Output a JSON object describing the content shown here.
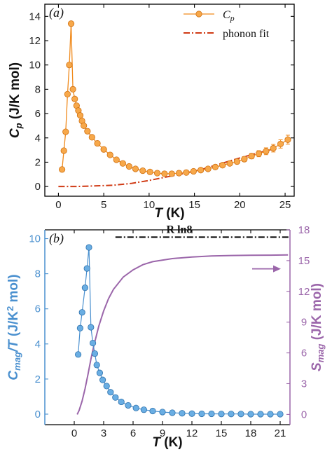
{
  "chart_data": [
    {
      "panel": "(a)",
      "type": "line",
      "xlabel": "T (K)",
      "ylabel": "Cp (J/K mol)",
      "xlim": [
        -1.5,
        26
      ],
      "ylim": [
        -0.8,
        15
      ],
      "xticks": [
        0,
        5,
        10,
        15,
        20,
        25
      ],
      "yticks": [
        0,
        2,
        4,
        6,
        8,
        10,
        12,
        14
      ],
      "grid": false,
      "legend_position": "top-right",
      "colors": {
        "cp": "#f08a1c",
        "cp_marker": "#f7a84a",
        "phonon": "#d03a14",
        "axis": "#000000"
      },
      "series": [
        {
          "name": "C_p",
          "style": "line+marker+errorbar",
          "x": [
            0.4,
            0.6,
            0.8,
            1.0,
            1.2,
            1.4,
            1.6,
            1.8,
            2.0,
            2.2,
            2.4,
            2.6,
            2.8,
            3.2,
            3.7,
            4.3,
            5.0,
            5.7,
            6.4,
            7.1,
            7.8,
            8.5,
            9.3,
            10.1,
            10.9,
            11.7,
            12.5,
            13.3,
            14.1,
            14.9,
            15.7,
            16.5,
            17.3,
            18.1,
            18.9,
            19.7,
            20.5,
            21.3,
            22.1,
            22.9,
            23.7,
            24.5,
            25.3
          ],
          "y": [
            1.4,
            2.95,
            4.5,
            7.6,
            10.0,
            13.4,
            8.0,
            7.2,
            6.65,
            6.25,
            5.85,
            5.4,
            5.0,
            4.55,
            4.05,
            3.55,
            3.05,
            2.6,
            2.2,
            1.9,
            1.65,
            1.45,
            1.3,
            1.2,
            1.1,
            1.05,
            1.05,
            1.1,
            1.15,
            1.25,
            1.35,
            1.45,
            1.6,
            1.75,
            1.9,
            2.05,
            2.25,
            2.5,
            2.7,
            2.9,
            3.15,
            3.5,
            3.85
          ],
          "error": [
            0.02,
            0.02,
            0.02,
            0.02,
            0.02,
            0.02,
            0.02,
            0.02,
            0.02,
            0.02,
            0.02,
            0.02,
            0.02,
            0.02,
            0.02,
            0.02,
            0.02,
            0.02,
            0.02,
            0.02,
            0.02,
            0.02,
            0.02,
            0.02,
            0.02,
            0.03,
            0.04,
            0.05,
            0.06,
            0.07,
            0.08,
            0.09,
            0.1,
            0.12,
            0.14,
            0.17,
            0.2,
            0.22,
            0.25,
            0.28,
            0.31,
            0.34,
            0.37
          ]
        },
        {
          "name": "phonon fit",
          "style": "dash-dot",
          "x": [
            0,
            2,
            4,
            6,
            8,
            10,
            12,
            14,
            16,
            18,
            20,
            22,
            24
          ],
          "y": [
            0.0,
            0.0,
            0.05,
            0.1,
            0.25,
            0.5,
            0.8,
            1.1,
            1.45,
            1.9,
            2.35,
            2.75,
            3.15
          ]
        }
      ]
    },
    {
      "panel": "(b)",
      "type": "line",
      "xlabel": "T (K)",
      "ylabel_left": "Cmag/T (J/K2 mol)",
      "ylabel_right": "Smag (J/K mol)",
      "xlim": [
        -3,
        22
      ],
      "ylim_left": [
        -0.6,
        10.5
      ],
      "ylim_right": [
        -1.0,
        18.0
      ],
      "xticks": [
        0,
        3,
        6,
        9,
        12,
        15,
        18,
        21
      ],
      "yticks_left": [
        0,
        2,
        4,
        6,
        8,
        10
      ],
      "yticks_right": [
        0,
        3,
        6,
        9,
        12,
        15,
        18
      ],
      "grid": false,
      "annotation": {
        "text": "R ln8",
        "value": 17.29,
        "x_start": 4.2
      },
      "arrow_direction": "right",
      "colors": {
        "cmag": "#4a90cf",
        "cmag_marker": "#6aaee3",
        "smag": "#9b66aa",
        "rln8": "#000000"
      },
      "series": [
        {
          "name": "Cmag/T",
          "axis": "left",
          "style": "line+marker",
          "x": [
            0.4,
            0.6,
            0.8,
            1.1,
            1.3,
            1.5,
            1.7,
            1.9,
            2.1,
            2.3,
            2.6,
            2.9,
            3.3,
            3.7,
            4.2,
            4.8,
            5.5,
            6.3,
            7.1,
            8.0,
            9.0,
            10.0,
            11.0,
            12.0,
            13.0,
            14.0,
            15.0,
            16.0,
            17.0,
            18.0,
            19.0,
            20.0,
            21.0
          ],
          "y": [
            3.4,
            4.9,
            5.8,
            7.2,
            8.3,
            9.5,
            4.95,
            4.05,
            3.45,
            2.8,
            2.35,
            1.95,
            1.6,
            1.25,
            0.95,
            0.7,
            0.5,
            0.35,
            0.25,
            0.18,
            0.12,
            0.08,
            0.05,
            0.03,
            0.02,
            0.02,
            0.01,
            0.01,
            0.01,
            0.0,
            0.0,
            0.0,
            0.0
          ]
        },
        {
          "name": "Smag",
          "axis": "right",
          "style": "line",
          "x": [
            0.3,
            0.5,
            0.8,
            1.1,
            1.4,
            1.7,
            2.0,
            2.5,
            3.0,
            3.5,
            4.0,
            5.0,
            6.0,
            7.0,
            8.0,
            10.0,
            12.0,
            14.0,
            16.0,
            18.0,
            20.0,
            21.8
          ],
          "y": [
            0.0,
            0.4,
            1.3,
            2.5,
            3.9,
            5.4,
            6.7,
            8.6,
            10.1,
            11.3,
            12.2,
            13.4,
            14.1,
            14.6,
            14.9,
            15.2,
            15.35,
            15.45,
            15.5,
            15.52,
            15.53,
            15.55
          ]
        }
      ]
    }
  ]
}
